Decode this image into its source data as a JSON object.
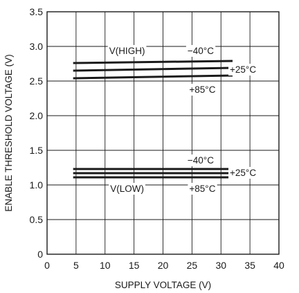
{
  "chart_data": {
    "type": "line",
    "xlabel": "SUPPLY VOLTAGE (V)",
    "ylabel": "ENABLE THRESHOLD VOLTAGE (V)",
    "xlim": [
      0,
      40
    ],
    "ylim": [
      0,
      3.5
    ],
    "xticks": [
      0,
      5,
      10,
      15,
      20,
      25,
      30,
      35,
      40
    ],
    "xtick_labels": [
      "0",
      "5",
      "10",
      "15",
      "20",
      "25",
      "30",
      "35",
      "40"
    ],
    "yticks": [
      0,
      0.5,
      1.0,
      1.5,
      2.0,
      2.5,
      3.0,
      3.5
    ],
    "ytick_labels": [
      "0",
      "0.5",
      "1.0",
      "1.5",
      "2.0",
      "2.5",
      "3.0",
      "3.5"
    ],
    "grid": true,
    "series": [
      {
        "name": "V(HIGH) −40°C",
        "x": [
          4.5,
          32
        ],
        "y": [
          2.76,
          2.79
        ]
      },
      {
        "name": "V(HIGH) +25°C",
        "x": [
          4.5,
          32
        ],
        "y": [
          2.65,
          2.69
        ]
      },
      {
        "name": "V(HIGH) +85°C",
        "x": [
          4.5,
          32
        ],
        "y": [
          2.54,
          2.58
        ]
      },
      {
        "name": "V(LOW) −40°C",
        "x": [
          4.5,
          32
        ],
        "y": [
          1.23,
          1.23
        ]
      },
      {
        "name": "V(LOW) +25°C",
        "x": [
          4.5,
          32
        ],
        "y": [
          1.17,
          1.17
        ]
      },
      {
        "name": "V(LOW) +85°C",
        "x": [
          4.5,
          32
        ],
        "y": [
          1.11,
          1.11
        ]
      }
    ],
    "annotations": [
      {
        "text": "V(HIGH)",
        "x": 13.8,
        "y": 2.94
      },
      {
        "text": "−40°C",
        "x": 26.5,
        "y": 2.94
      },
      {
        "text": "+25°C",
        "x": 33.8,
        "y": 2.67
      },
      {
        "text": "+85°C",
        "x": 26.8,
        "y": 2.38
      },
      {
        "text": "−40°C",
        "x": 26.5,
        "y": 1.36
      },
      {
        "text": "+25°C",
        "x": 33.8,
        "y": 1.18
      },
      {
        "text": "V(LOW)",
        "x": 13.8,
        "y": 0.95
      },
      {
        "text": "+85°C",
        "x": 26.8,
        "y": 0.95
      }
    ]
  }
}
